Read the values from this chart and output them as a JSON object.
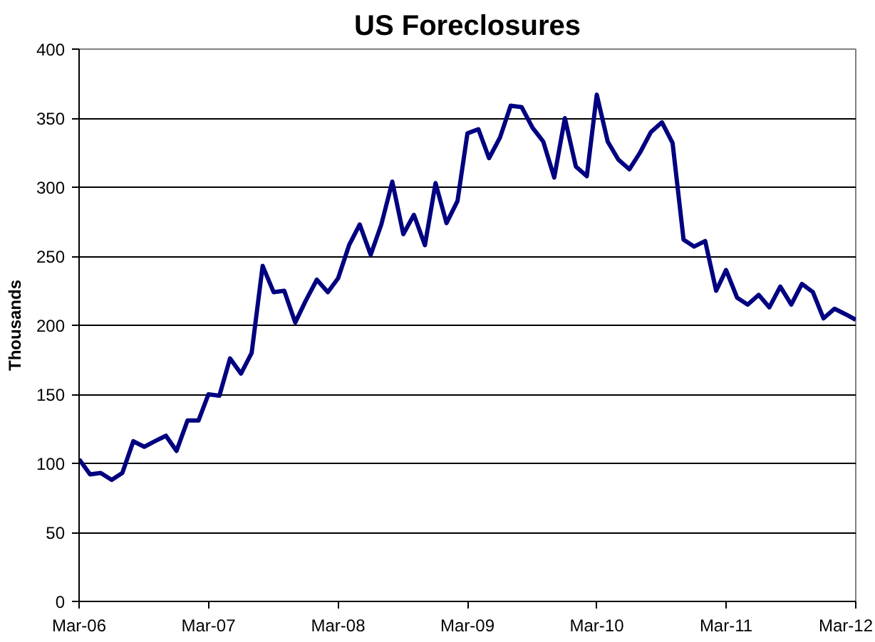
{
  "chart_data": {
    "type": "line",
    "title": "US Foreclosures",
    "ylabel": "Thousands",
    "x": [
      "2006-03",
      "2006-04",
      "2006-05",
      "2006-06",
      "2006-07",
      "2006-08",
      "2006-09",
      "2006-10",
      "2006-11",
      "2006-12",
      "2007-01",
      "2007-02",
      "2007-03",
      "2007-04",
      "2007-05",
      "2007-06",
      "2007-07",
      "2007-08",
      "2007-09",
      "2007-10",
      "2007-11",
      "2007-12",
      "2008-01",
      "2008-02",
      "2008-03",
      "2008-04",
      "2008-05",
      "2008-06",
      "2008-07",
      "2008-08",
      "2008-09",
      "2008-10",
      "2008-11",
      "2008-12",
      "2009-01",
      "2009-02",
      "2009-03",
      "2009-04",
      "2009-05",
      "2009-06",
      "2009-07",
      "2009-08",
      "2009-09",
      "2009-10",
      "2009-11",
      "2009-12",
      "2010-01",
      "2010-02",
      "2010-03",
      "2010-04",
      "2010-05",
      "2010-06",
      "2010-07",
      "2010-08",
      "2010-09",
      "2010-10",
      "2010-11",
      "2010-12",
      "2011-01",
      "2011-02",
      "2011-03",
      "2011-04",
      "2011-05",
      "2011-06",
      "2011-07",
      "2011-08",
      "2011-09",
      "2011-10",
      "2011-11",
      "2011-12",
      "2012-01",
      "2012-02",
      "2012-03"
    ],
    "series": [
      {
        "color": "#000080",
        "values": [
          103,
          92,
          93,
          88,
          93,
          116,
          112,
          116,
          120,
          109,
          131,
          131,
          150,
          149,
          176,
          165,
          180,
          243,
          224,
          225,
          202,
          218,
          233,
          224,
          234,
          258,
          273,
          251,
          273,
          304,
          266,
          280,
          258,
          303,
          274,
          290,
          339,
          342,
          321,
          336,
          359,
          358,
          343,
          333,
          307,
          350,
          315,
          308,
          367,
          333,
          320,
          313,
          325,
          340,
          347,
          332,
          262,
          257,
          261,
          225,
          240,
          220,
          215,
          222,
          213,
          228,
          215,
          230,
          224,
          205,
          212,
          208,
          204
        ]
      }
    ],
    "xlim": [
      "2006-03",
      "2012-03"
    ],
    "xticks": [
      {
        "value": "2006-03",
        "label": "Mar-06"
      },
      {
        "value": "2007-03",
        "label": "Mar-07"
      },
      {
        "value": "2008-03",
        "label": "Mar-08"
      },
      {
        "value": "2009-03",
        "label": "Mar-09"
      },
      {
        "value": "2010-03",
        "label": "Mar-10"
      },
      {
        "value": "2011-03",
        "label": "Mar-11"
      },
      {
        "value": "2012-03",
        "label": "Mar-12"
      }
    ],
    "ylim": [
      0,
      400
    ],
    "yticks": [
      0,
      50,
      100,
      150,
      200,
      250,
      300,
      350,
      400
    ],
    "grid": "y",
    "marker": "none",
    "line_style": "solid"
  }
}
